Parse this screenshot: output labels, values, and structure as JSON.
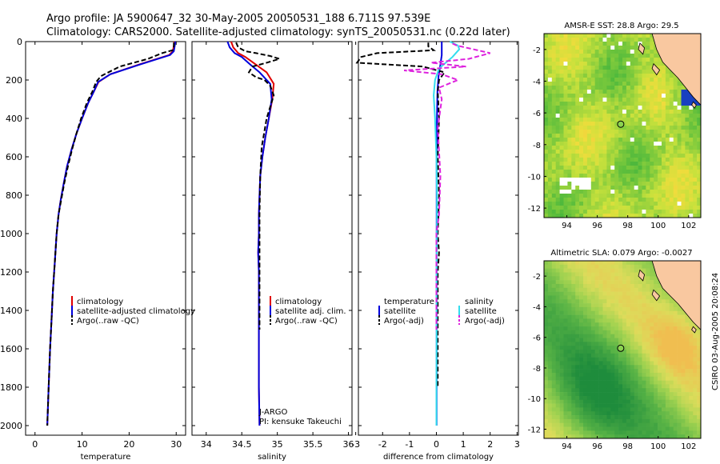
{
  "header": {
    "line1": "Argo profile: JA 5900647_32 30-May-2005 20050531_188 6.711S 97.539E",
    "line2": "Climatology: CARS2000. Satellite-adjusted climatology: synTS_20050531.nc (0.22d later)"
  },
  "side_note": "CSIRO 03-Aug-2005 20:08:24",
  "colors": {
    "climatology": "#e00000",
    "satellite": "#0000dd",
    "argo": "#000000",
    "salinity_satellite": "#33ddee",
    "salinity_argo": "#dd22dd",
    "land": "#f9c8a0"
  },
  "chart_data": [
    {
      "id": "temperature",
      "type": "line",
      "xlabel": "temperature",
      "ylabel": "",
      "xlim": [
        -2,
        32
      ],
      "ylim": [
        0,
        2050
      ],
      "y_reversed": true,
      "xticks": [
        0,
        10,
        20,
        30
      ],
      "yticks": [
        0,
        200,
        400,
        600,
        800,
        1000,
        1200,
        1400,
        1600,
        1800,
        2000
      ],
      "series": [
        {
          "name": "climatology",
          "color": "#e00000",
          "dash": false,
          "x": [
            29.6,
            29.5,
            29.3,
            28.5,
            22,
            16,
            13.5,
            12.5,
            11.3,
            10,
            8.8,
            7.8,
            6.8,
            6.1,
            5.5,
            5,
            4.6,
            4.2,
            3.8,
            3.5,
            3.2,
            2.9,
            2.6
          ],
          "y": [
            0,
            20,
            50,
            70,
            120,
            170,
            210,
            260,
            320,
            400,
            480,
            560,
            650,
            740,
            820,
            900,
            1000,
            1150,
            1300,
            1450,
            1600,
            1800,
            2000
          ]
        },
        {
          "name": "satellite-adjusted climatology",
          "color": "#0000dd",
          "dash": false,
          "x": [
            29.8,
            29.7,
            29.5,
            28.7,
            22.2,
            16,
            13.4,
            12.5,
            11.3,
            10,
            8.8,
            7.8,
            6.8,
            6.1,
            5.5,
            5,
            4.6,
            4.2,
            3.8,
            3.5,
            3.2,
            2.9,
            2.6
          ],
          "y": [
            0,
            20,
            50,
            70,
            120,
            170,
            210,
            260,
            320,
            400,
            480,
            560,
            650,
            740,
            820,
            900,
            1000,
            1150,
            1300,
            1450,
            1600,
            1800,
            2000
          ]
        },
        {
          "name": "Argo(..raw -QC)",
          "color": "#000000",
          "dash": true,
          "x": [
            29.5,
            29.5,
            29.2,
            27,
            24,
            18,
            14,
            13,
            12.2,
            11,
            9.8,
            8.8,
            7.9,
            7,
            6.2,
            5.6,
            5,
            4.6,
            4.2,
            3.8,
            3.5,
            3.2,
            2.9,
            2.6
          ],
          "y": [
            5,
            25,
            45,
            60,
            90,
            130,
            180,
            210,
            260,
            320,
            400,
            480,
            560,
            650,
            740,
            820,
            900,
            1000,
            1150,
            1300,
            1450,
            1600,
            1800,
            2000
          ]
        }
      ]
    },
    {
      "id": "salinity",
      "type": "line",
      "xlabel": "salinity",
      "ylabel": "",
      "xlim": [
        33.8,
        36.05
      ],
      "ylim": [
        0,
        2050
      ],
      "y_reversed": true,
      "xticks": [
        34,
        34.5,
        35,
        35.5,
        36
      ],
      "xtick_labels": [
        "34",
        "34.5",
        "35",
        "35.5",
        "36"
      ],
      "series": [
        {
          "name": "climatology",
          "color": "#e00000",
          "dash": false,
          "x": [
            34.35,
            34.38,
            34.45,
            34.55,
            34.7,
            34.85,
            34.95,
            34.93,
            34.88,
            34.83,
            34.79,
            34.76,
            34.75,
            34.74,
            34.74,
            34.73,
            34.74,
            34.74,
            34.74,
            34.74,
            34.75
          ],
          "y": [
            0,
            30,
            60,
            80,
            120,
            160,
            220,
            300,
            400,
            500,
            600,
            700,
            800,
            900,
            1000,
            1100,
            1200,
            1400,
            1600,
            1800,
            2000
          ]
        },
        {
          "name": "satellite adj. clim.",
          "color": "#0000dd",
          "dash": false,
          "x": [
            34.3,
            34.33,
            34.4,
            34.5,
            34.62,
            34.75,
            34.9,
            34.92,
            34.88,
            34.83,
            34.79,
            34.76,
            34.75,
            34.74,
            34.74,
            34.73,
            34.74,
            34.74,
            34.74,
            34.74,
            34.75
          ],
          "y": [
            0,
            30,
            60,
            80,
            120,
            160,
            220,
            300,
            400,
            500,
            600,
            700,
            800,
            900,
            1000,
            1100,
            1200,
            1400,
            1600,
            1800,
            2000
          ]
        },
        {
          "name": "Argo(..raw -QC)",
          "color": "#000000",
          "dash": true,
          "x": [
            34.42,
            34.45,
            34.55,
            34.7,
            34.9,
            35.03,
            34.85,
            34.65,
            34.6,
            34.7,
            34.82,
            34.9,
            34.95,
            34.85,
            34.78,
            34.76,
            34.75,
            34.75,
            34.75
          ],
          "y": [
            5,
            30,
            50,
            60,
            75,
            90,
            110,
            130,
            160,
            185,
            200,
            230,
            280,
            400,
            550,
            700,
            900,
            1200,
            1500
          ]
        }
      ]
    },
    {
      "id": "difference",
      "type": "line",
      "xlabel": "difference from climatology",
      "ylabel": "",
      "xlim": [
        -2.9,
        3.05
      ],
      "ylim": [
        0,
        2050
      ],
      "y_reversed": true,
      "xticks": [
        -3,
        -2,
        -1,
        0,
        1,
        2,
        3
      ],
      "series": [
        {
          "name": "temperature satellite",
          "color": "#0000dd",
          "dash": false,
          "x": [
            0.2,
            0.2,
            0.2,
            0.2,
            0.15,
            0.08,
            0.04,
            0.02,
            0.01,
            0.01,
            0.01,
            0.01
          ],
          "y": [
            0,
            20,
            50,
            70,
            120,
            180,
            260,
            400,
            600,
            1000,
            1500,
            2000
          ]
        },
        {
          "name": "temperature Argo(-adj)",
          "color": "#000000",
          "dash": true,
          "x": [
            -0.3,
            -0.3,
            -0.1,
            -2.2,
            -2.8,
            -2.95,
            -0.5,
            0.3,
            0.1,
            0.05,
            0.1,
            0.05,
            0.1,
            0.05,
            0.1,
            0.05,
            0.05,
            0.05,
            0.05
          ],
          "y": [
            5,
            25,
            45,
            60,
            80,
            110,
            130,
            160,
            200,
            260,
            400,
            600,
            800,
            1000,
            1100,
            1200,
            1400,
            1600,
            1800
          ]
        },
        {
          "name": "salinity satellite",
          "color": "#33ddee",
          "dash": false,
          "x": [
            0.5,
            0.8,
            0.85,
            0.6,
            0.1,
            -0.05,
            -0.1,
            -0.05,
            0,
            0.02,
            0.02,
            0.01,
            0.01,
            0,
            0
          ],
          "y": [
            0,
            20,
            40,
            80,
            140,
            200,
            280,
            400,
            600,
            800,
            1000,
            1200,
            1500,
            1800,
            2000
          ]
        },
        {
          "name": "salinity Argo(-adj)",
          "color": "#dd22dd",
          "dash": true,
          "x": [
            0.6,
            0.75,
            2.0,
            1.2,
            -0.2,
            1.1,
            -1.2,
            0.2,
            0.8,
            0.1,
            0.2,
            0.05,
            0.15,
            0.1,
            0,
            0,
            0
          ],
          "y": [
            10,
            20,
            60,
            90,
            110,
            130,
            150,
            170,
            200,
            240,
            300,
            450,
            700,
            900,
            1000,
            1200,
            1500
          ]
        }
      ]
    }
  ],
  "legends": {
    "temperature": [
      "climatology",
      "satellite-adjusted climatology",
      "Argo(..raw -QC)"
    ],
    "salinity": [
      "climatology",
      "satellite adj. clim.",
      "Argo(..raw -QC)"
    ],
    "diff_left_title": "temperature",
    "diff_left": [
      "satellite",
      "Argo(-adj)"
    ],
    "diff_right_title": "salinity",
    "diff_right": [
      "satellite",
      "Argo(-adj)"
    ]
  },
  "salinity_note": [
    "J-ARGO",
    "PI: kensuke Takeuchi"
  ],
  "maps": [
    {
      "id": "sst-map",
      "title": "AMSR-E SST: 28.8 Argo: 29.5",
      "type": "heatmap",
      "xlim": [
        92.5,
        102.8
      ],
      "ylim": [
        -12.6,
        -1.0
      ],
      "xticks": [
        94,
        96,
        98,
        100,
        102
      ],
      "yticks": [
        -2,
        -4,
        -6,
        -8,
        -10,
        -12
      ],
      "argo_position": {
        "lon": 97.539,
        "lat": -6.711
      },
      "palette": "sst"
    },
    {
      "id": "sla-map",
      "title": "Altimetric SLA: 0.079 Argo: -0.0027",
      "type": "heatmap",
      "xlim": [
        92.5,
        102.8
      ],
      "ylim": [
        -12.6,
        -1.0
      ],
      "xticks": [
        94,
        96,
        98,
        100,
        102
      ],
      "yticks": [
        -2,
        -4,
        -6,
        -8,
        -10,
        -12
      ],
      "argo_position": {
        "lon": 97.539,
        "lat": -6.711
      },
      "palette": "sla"
    }
  ]
}
